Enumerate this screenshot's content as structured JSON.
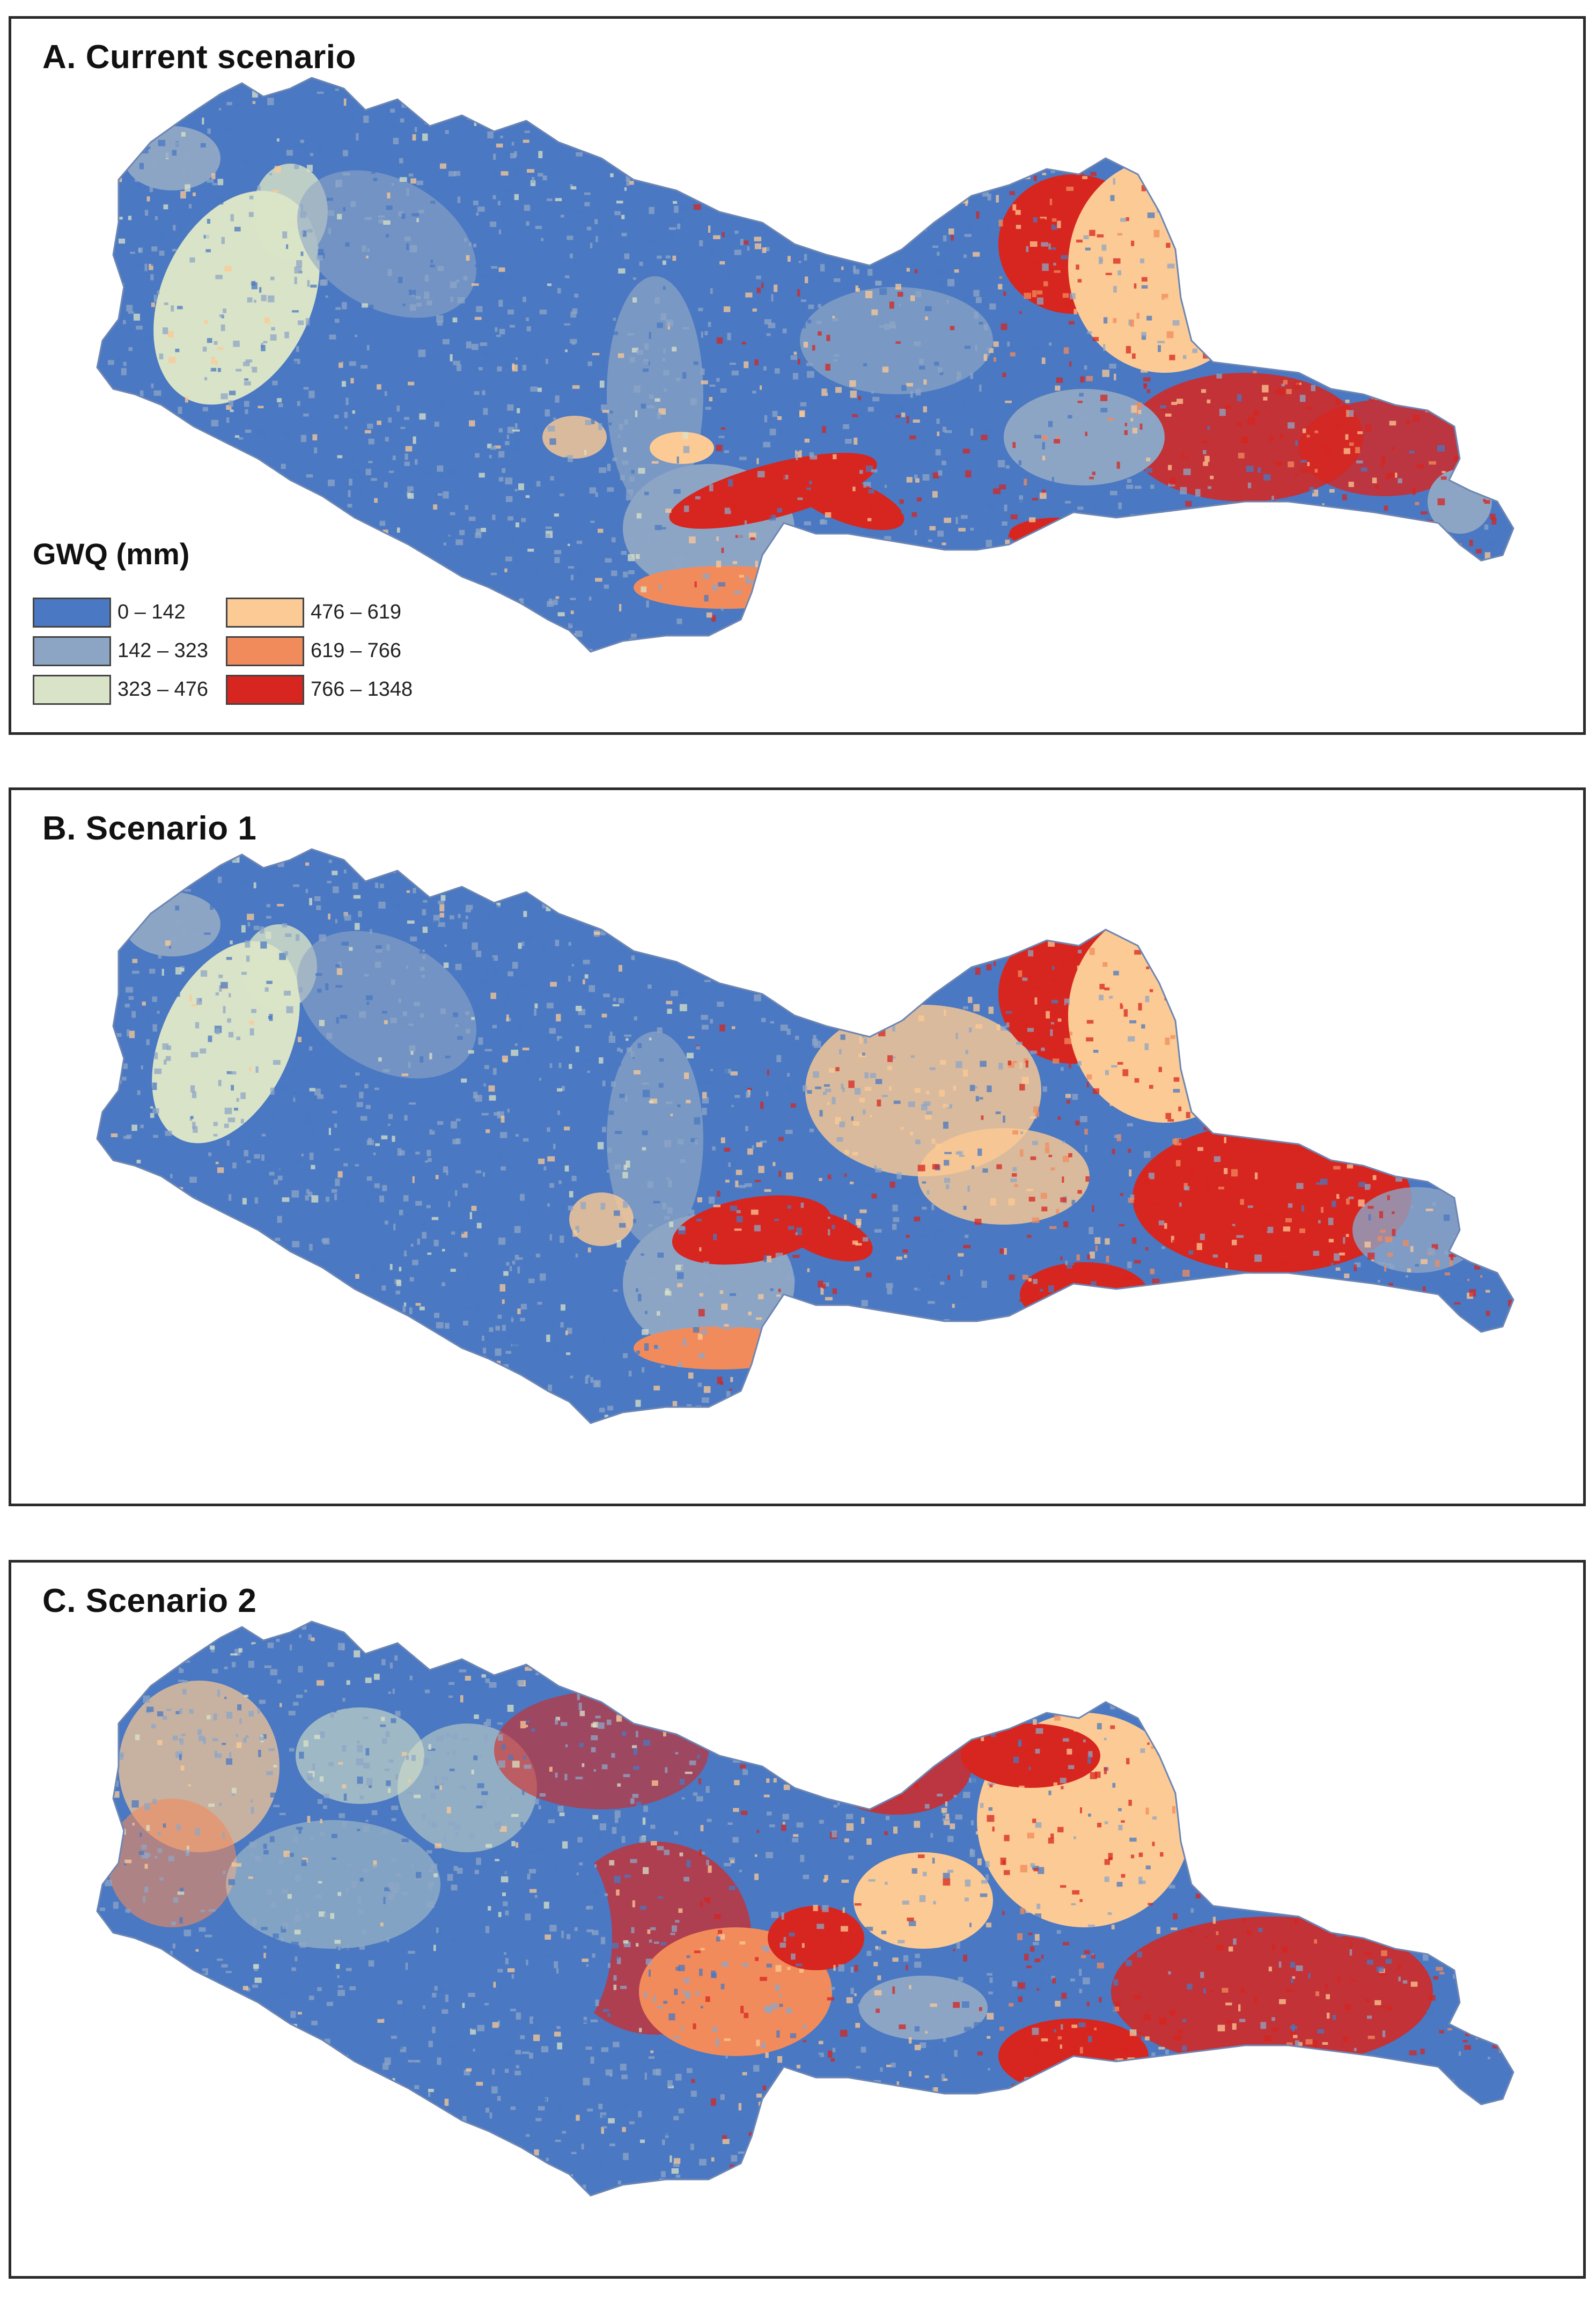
{
  "panels": [
    {
      "id": "a",
      "title": "A. Current scenario"
    },
    {
      "id": "b",
      "title": "B. Scenario 1"
    },
    {
      "id": "c",
      "title": "C. Scenario 2"
    }
  ],
  "legend": {
    "title": "GWQ (mm)",
    "classes": [
      {
        "label": "0 – 142",
        "color": "#4a78c2"
      },
      {
        "label": "142 – 323",
        "color": "#8da5c5"
      },
      {
        "label": "323 – 476",
        "color": "#d9e3c7"
      },
      {
        "label": "476 – 619",
        "color": "#fcca94"
      },
      {
        "label": "619 – 766",
        "color": "#f28b5c"
      },
      {
        "label": "766 – 1348",
        "color": "#d7261f"
      }
    ]
  }
}
